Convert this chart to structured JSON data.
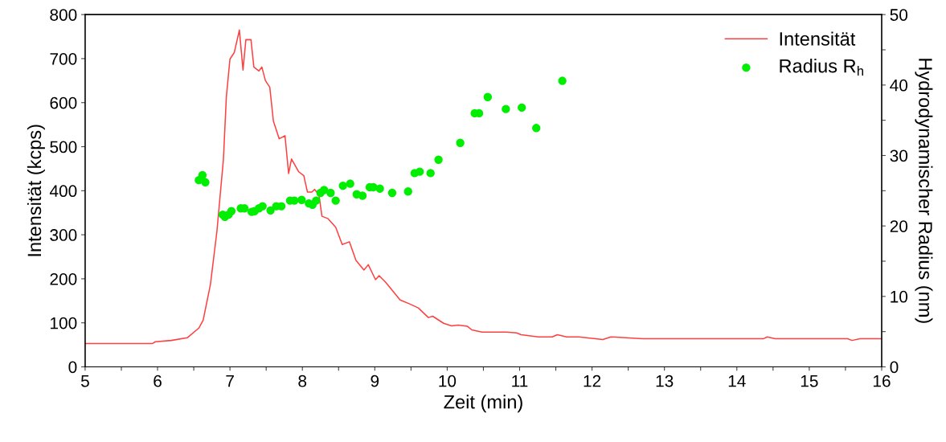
{
  "chart_data": {
    "type": "line",
    "xlabel": "Zeit (min)",
    "ylabel": "Intensität (kcps)",
    "y2label": "Hydrodynamischer Radius (nm)",
    "xlim": [
      5,
      16
    ],
    "xticks": [
      5,
      {
        "value": 5.5,
        "label": null
      },
      6,
      {
        "value": 6.5,
        "label": null
      },
      7,
      {
        "value": 7.5,
        "label": null
      },
      8,
      {
        "value": 8.5,
        "label": null
      },
      9,
      {
        "value": 9.5,
        "label": null
      },
      10,
      {
        "value": 10.5,
        "label": null
      },
      11,
      {
        "value": 11.5,
        "label": null
      },
      12,
      {
        "value": 12.5,
        "label": null
      },
      13,
      {
        "value": 13.5,
        "label": null
      },
      14,
      {
        "value": 14.5,
        "label": null
      },
      15,
      {
        "value": 15.5,
        "label": null
      },
      16
    ],
    "ylim": [
      0,
      800
    ],
    "yticks": [
      0,
      100,
      200,
      300,
      400,
      500,
      600,
      700,
      800
    ],
    "y2lim": [
      0,
      50
    ],
    "y2ticks": [
      0,
      {
        "value": 5,
        "label": null
      },
      10,
      {
        "value": 15,
        "label": null
      },
      20,
      {
        "value": 25,
        "label": null
      },
      30,
      {
        "value": 35,
        "label": null
      },
      40,
      {
        "value": 45,
        "label": null
      },
      50
    ],
    "grid": false,
    "legend": "top right",
    "series": [
      {
        "name": "Intensität",
        "color": "#ff4040",
        "marker": "none",
        "line_style": "solid",
        "x": [
          5.0,
          5.93,
          5.97,
          6.19,
          6.41,
          6.57,
          6.63,
          6.73,
          6.82,
          6.91,
          6.95,
          7.0,
          7.06,
          7.13,
          7.18,
          7.22,
          7.29,
          7.33,
          7.4,
          7.44,
          7.49,
          7.55,
          7.6,
          7.68,
          7.76,
          7.81,
          7.85,
          7.95,
          8.02,
          8.07,
          8.13,
          8.17,
          8.23,
          8.27,
          8.35,
          8.46,
          8.55,
          8.65,
          8.74,
          8.85,
          8.91,
          9.01,
          9.06,
          9.15,
          9.35,
          9.48,
          9.6,
          9.74,
          9.8,
          9.95,
          10.06,
          10.15,
          10.28,
          10.34,
          10.48,
          10.82,
          10.96,
          11.02,
          11.26,
          11.45,
          11.52,
          11.65,
          11.82,
          12.15,
          12.26,
          12.7,
          14.37,
          14.42,
          14.53,
          15.53,
          15.59,
          15.7,
          16.0
        ],
        "values": [
          53,
          53,
          57,
          60,
          66,
          88,
          106,
          187,
          308,
          472,
          613,
          699,
          714,
          765,
          674,
          743,
          743,
          681,
          672,
          681,
          650,
          635,
          558,
          518,
          525,
          439,
          472,
          443,
          434,
          397,
          397,
          403,
          390,
          342,
          337,
          317,
          278,
          284,
          242,
          220,
          232,
          198,
          207,
          192,
          152,
          143,
          134,
          112,
          115,
          99,
          93,
          95,
          92,
          84,
          79,
          79,
          77,
          73,
          68,
          68,
          73,
          68,
          68,
          62,
          68,
          64,
          64,
          68,
          64,
          64,
          60,
          64,
          64
        ]
      },
      {
        "name": "Radius R$_{h}$",
        "type": "scatter",
        "axis": "y2",
        "color": "#00ee00",
        "marker": "circle",
        "x": [
          6.57,
          6.62,
          6.66,
          6.9,
          6.93,
          6.98,
          7.02,
          7.15,
          7.2,
          7.3,
          7.34,
          7.4,
          7.45,
          7.56,
          7.64,
          7.71,
          7.83,
          7.89,
          7.99,
          8.09,
          8.14,
          8.19,
          8.25,
          8.3,
          8.39,
          8.46,
          8.56,
          8.66,
          8.75,
          8.83,
          8.93,
          8.98,
          9.07,
          9.24,
          9.46,
          9.55,
          9.62,
          9.77,
          9.88,
          10.18,
          10.38,
          10.44,
          10.56,
          10.81,
          11.03,
          11.23,
          11.59
        ],
        "values": [
          26.5,
          27.2,
          26.2,
          21.6,
          21.3,
          21.6,
          22.1,
          22.5,
          22.5,
          22.0,
          22.1,
          22.5,
          22.8,
          22.2,
          22.8,
          22.8,
          23.6,
          23.6,
          23.7,
          23.2,
          23.0,
          23.6,
          24.7,
          25.1,
          24.7,
          23.6,
          25.7,
          26.0,
          24.5,
          24.3,
          25.5,
          25.5,
          25.3,
          24.7,
          24.9,
          27.5,
          27.7,
          27.5,
          29.4,
          31.8,
          36.0,
          36.0,
          38.3,
          36.6,
          36.8,
          33.9,
          40.6
        ]
      }
    ]
  }
}
